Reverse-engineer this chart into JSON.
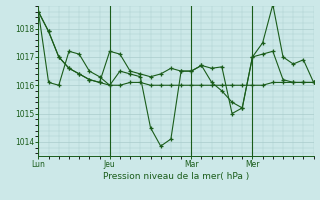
{
  "background_color": "#cce8e8",
  "grid_color": "#aacccc",
  "line_color": "#1a5c1a",
  "title": "Pression niveau de la mer( hPa )",
  "ylim": [
    1013.5,
    1018.8
  ],
  "yticks": [
    1014,
    1015,
    1016,
    1017,
    1018
  ],
  "xtick_labels": [
    "Lun",
    "Jeu",
    "Mar",
    "Mer"
  ],
  "xtick_positions": [
    0,
    7,
    15,
    21
  ],
  "vline_positions": [
    0,
    7,
    15,
    21
  ],
  "s1x": [
    0,
    1,
    2,
    3,
    4,
    5,
    6,
    7,
    8,
    9,
    10,
    11,
    12,
    13,
    14,
    15,
    16,
    17,
    18,
    19,
    20,
    21,
    22,
    23,
    24,
    25,
    26,
    27
  ],
  "s1y": [
    1018.6,
    1017.9,
    1017.0,
    1016.6,
    1016.4,
    1016.2,
    1016.1,
    1016.0,
    1016.0,
    1016.1,
    1016.1,
    1016.0,
    1016.0,
    1016.0,
    1016.0,
    1016.0,
    1016.0,
    1016.0,
    1016.0,
    1016.0,
    1016.0,
    1016.0,
    1016.0,
    1016.1,
    1016.1,
    1016.1,
    1016.1,
    1016.1
  ],
  "s2x": [
    0,
    1,
    2,
    3,
    4,
    5,
    6,
    7,
    8,
    9,
    10,
    11,
    12,
    13,
    14,
    15,
    16,
    17,
    18,
    19,
    20,
    21,
    22,
    23,
    24,
    25,
    26,
    27
  ],
  "s2y": [
    1018.6,
    1017.9,
    1017.0,
    1016.6,
    1016.4,
    1016.2,
    1016.1,
    1017.2,
    1017.1,
    1016.5,
    1016.4,
    1016.3,
    1016.4,
    1016.6,
    1016.5,
    1016.5,
    1016.7,
    1016.1,
    1015.8,
    1015.4,
    1015.2,
    1017.0,
    1017.1,
    1017.2,
    1016.2,
    1016.1,
    1016.1,
    1016.1
  ],
  "s3x": [
    0,
    1,
    2,
    3,
    4,
    5,
    6,
    7,
    8,
    9,
    10,
    11,
    12,
    13,
    14,
    15,
    16,
    17,
    18,
    19,
    20,
    21,
    22,
    23,
    24,
    25,
    26,
    27
  ],
  "s3y": [
    1018.6,
    1016.1,
    1016.0,
    1017.2,
    1017.1,
    1016.5,
    1016.3,
    1016.0,
    1016.5,
    1016.4,
    1016.3,
    1014.5,
    1013.85,
    1014.1,
    1016.5,
    1016.5,
    1016.7,
    1016.6,
    1016.65,
    1015.0,
    1015.2,
    1017.0,
    1017.5,
    1018.85,
    1017.0,
    1016.75,
    1016.9,
    1016.1
  ]
}
